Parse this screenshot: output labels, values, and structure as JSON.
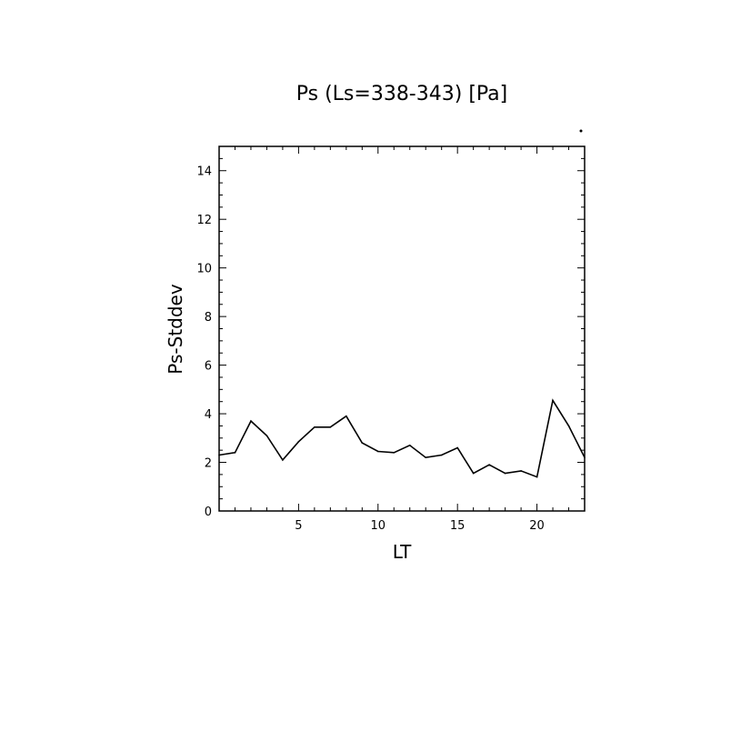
{
  "chart_data": {
    "type": "line",
    "title": "Ps (Ls=338-343) [Pa]",
    "xlabel": "LT",
    "ylabel": "Ps-Stddev",
    "xlim": [
      0,
      23
    ],
    "ylim": [
      0,
      15
    ],
    "x_ticks": [
      5,
      10,
      15,
      20
    ],
    "y_ticks": [
      0,
      2,
      4,
      6,
      8,
      10,
      12,
      14
    ],
    "grid": false,
    "series": [
      {
        "x": [
          0,
          1,
          2,
          3,
          4,
          5,
          6,
          7,
          8,
          9,
          10,
          11,
          12,
          13,
          14,
          15,
          16,
          17,
          18,
          19,
          20,
          21,
          22,
          23
        ],
        "values": [
          2.3,
          2.4,
          3.7,
          3.1,
          2.1,
          2.85,
          3.45,
          3.45,
          3.9,
          2.8,
          2.45,
          2.4,
          2.7,
          2.2,
          2.3,
          2.6,
          1.55,
          1.9,
          1.55,
          1.65,
          1.4,
          4.55,
          3.5,
          2.2
        ]
      }
    ]
  }
}
